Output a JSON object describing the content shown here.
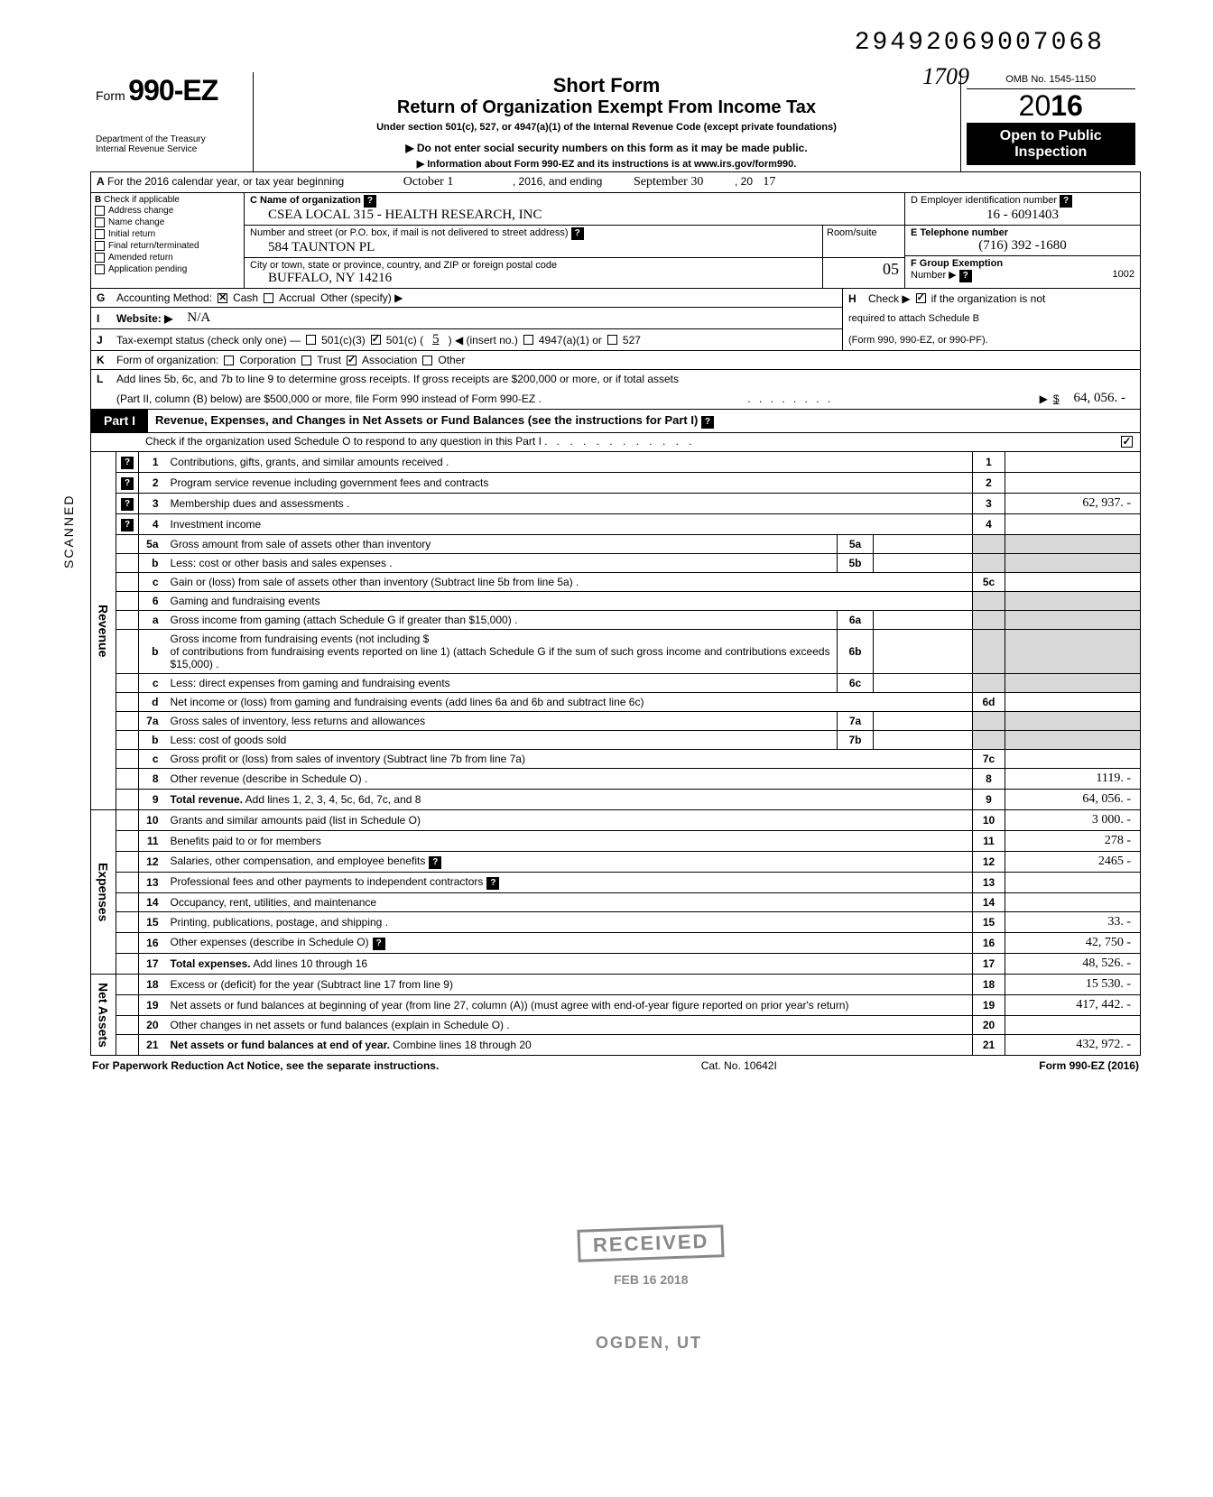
{
  "top_code": "29492069007068",
  "hand_top": "1709",
  "header": {
    "form_word": "Form",
    "form_no": "990-EZ",
    "dept1": "Department of the Treasury",
    "dept2": "Internal Revenue Service",
    "short_form": "Short Form",
    "return_org": "Return of Organization Exempt From Income Tax",
    "under": "Under section 501(c), 527, or 4947(a)(1) of the Internal Revenue Code (except private foundations)",
    "arrow1": "▶ Do not enter social security numbers on this form as it may be made public.",
    "arrow2": "▶ Information about Form 990-EZ and its instructions is at www.irs.gov/form990.",
    "omb": "OMB No. 1545-1150",
    "year_prefix": "20",
    "year_bold": "16",
    "open1": "Open to Public",
    "open2": "Inspection"
  },
  "row_a": {
    "label_a": "A",
    "text1": "For the 2016 calendar year, or tax year beginning",
    "begin": "October 1",
    "mid": ", 2016, and ending",
    "end": "September 30",
    "yr_pref": ", 20",
    "yr_val": "17"
  },
  "col_b": {
    "title": "B",
    "title2": "Check if applicable",
    "items": [
      "Address change",
      "Name change",
      "Initial return",
      "Final return/terminated",
      "Amended return",
      "Application pending"
    ]
  },
  "col_c": {
    "c_label": "C  Name of organization",
    "c_val": "CSEA LOCAL 315 - HEALTH RESEARCH, INC",
    "c2_label": "Number and street (or P.O. box, if mail is not delivered to street address)",
    "c2_val": "584 TAUNTON PL",
    "room_label": "Room/suite",
    "c3_label": "City or town, state or province, country, and ZIP or foreign postal code",
    "c3_val": "BUFFALO,  NY 14216",
    "room_hand": "05"
  },
  "col_def": {
    "d_label": "D Employer identification number",
    "d_val": "16 - 6091403",
    "e_label": "E Telephone number",
    "e_val": "(716) 392 -1680",
    "f_label": "F Group Exemption",
    "f_label2": "Number ▶",
    "f_val": "1002"
  },
  "line_g": {
    "lbl": "G",
    "text": "Accounting Method:",
    "cash": "Cash",
    "accrual": "Accrual",
    "other": "Other (specify) ▶"
  },
  "line_h": {
    "lbl": "H",
    "text1": "Check ▶",
    "text2": "if the organization is not",
    "text3": "required to attach Schedule B",
    "text4": "(Form 990, 990-EZ, or 990-PF)."
  },
  "line_i": {
    "lbl": "I",
    "text": "Website: ▶",
    "val": "N/A"
  },
  "line_j": {
    "lbl": "J",
    "text": "Tax-exempt status (check only one) —",
    "c3": "501(c)(3)",
    "c": "501(c) (",
    "cn": "5",
    "cins": ") ◀ (insert no.)",
    "a1": "4947(a)(1) or",
    "s527": "527"
  },
  "line_k": {
    "lbl": "K",
    "text": "Form of organization:",
    "corp": "Corporation",
    "trust": "Trust",
    "assoc": "Association",
    "other": "Other"
  },
  "line_l": {
    "lbl": "L",
    "text1": "Add lines 5b, 6c, and 7b to line 9 to determine gross receipts. If gross receipts are $200,000 or more, or if total assets",
    "text2": "(Part II, column (B) below) are $500,000 or more, file Form 990 instead of Form 990-EZ .",
    "dots": ". . . . . . . .",
    "arrow": "▶",
    "dollar": "$",
    "val": "64, 056. -"
  },
  "part1": {
    "tab": "Part I",
    "title": "Revenue, Expenses, and Changes in Net Assets or Fund Balances (see the instructions for Part I)",
    "sub": "Check if the organization used Schedule O to respond to any question in this Part I ."
  },
  "sides": {
    "rev": "Revenue",
    "exp": "Expenses",
    "na": "Net Assets"
  },
  "rows": [
    {
      "n": "1",
      "desc": "Contributions, gifts, grants, and similar amounts received .",
      "r": "1",
      "v": "",
      "qm": true
    },
    {
      "n": "2",
      "desc": "Program service revenue including government fees and contracts",
      "r": "2",
      "v": "",
      "qm": true
    },
    {
      "n": "3",
      "desc": "Membership dues and assessments .",
      "r": "3",
      "v": "62, 937. -",
      "qm": true
    },
    {
      "n": "4",
      "desc": "Investment income",
      "r": "4",
      "v": "",
      "qm": true
    },
    {
      "n": "5a",
      "desc": "Gross amount from sale of assets other than inventory",
      "mid": "5a",
      "midv": ""
    },
    {
      "n": "b",
      "desc": "Less: cost or other basis and sales expenses .",
      "mid": "5b",
      "midv": ""
    },
    {
      "n": "c",
      "desc": "Gain or (loss) from sale of assets other than inventory (Subtract line 5b from line 5a) .",
      "r": "5c",
      "v": ""
    },
    {
      "n": "6",
      "desc": "Gaming and fundraising events"
    },
    {
      "n": "a",
      "desc": "Gross income from gaming (attach Schedule G if greater than $15,000) .",
      "mid": "6a",
      "midv": ""
    },
    {
      "n": "b",
      "desc": "Gross income from fundraising events (not including  $",
      "desc2": "of contributions from fundraising events reported on line 1) (attach Schedule G if the sum of such gross income and contributions exceeds $15,000) .",
      "mid": "6b",
      "midv": ""
    },
    {
      "n": "c",
      "desc": "Less: direct expenses from gaming and fundraising events",
      "mid": "6c",
      "midv": ""
    },
    {
      "n": "d",
      "desc": "Net income or (loss) from gaming and fundraising events (add lines 6a and 6b and subtract line 6c)",
      "r": "6d",
      "v": ""
    },
    {
      "n": "7a",
      "desc": "Gross sales of inventory, less returns and allowances",
      "mid": "7a",
      "midv": ""
    },
    {
      "n": "b",
      "desc": "Less: cost of goods sold",
      "mid": "7b",
      "midv": ""
    },
    {
      "n": "c",
      "desc": "Gross profit or (loss) from sales of inventory (Subtract line 7b from line 7a)",
      "r": "7c",
      "v": ""
    },
    {
      "n": "8",
      "desc": "Other revenue (describe in Schedule O) .",
      "r": "8",
      "v": "1119. -"
    },
    {
      "n": "9",
      "desc": "Total revenue. Add lines 1, 2, 3, 4, 5c, 6d, 7c, and 8",
      "r": "9",
      "v": "64, 056. -",
      "bold": true
    },
    {
      "n": "10",
      "desc": "Grants and similar amounts paid (list in Schedule O)",
      "r": "10",
      "v": "3 000. -"
    },
    {
      "n": "11",
      "desc": "Benefits paid to or for members",
      "r": "11",
      "v": "278 -"
    },
    {
      "n": "12",
      "desc": "Salaries, other compensation, and employee benefits",
      "r": "12",
      "v": "2465 -",
      "qicon": true
    },
    {
      "n": "13",
      "desc": "Professional fees and other payments to independent contractors",
      "r": "13",
      "v": "",
      "qicon": true
    },
    {
      "n": "14",
      "desc": "Occupancy, rent, utilities, and maintenance",
      "r": "14",
      "v": ""
    },
    {
      "n": "15",
      "desc": "Printing, publications, postage, and shipping .",
      "r": "15",
      "v": "33. -"
    },
    {
      "n": "16",
      "desc": "Other expenses (describe in Schedule O)",
      "r": "16",
      "v": "42, 750 -",
      "qicon": true
    },
    {
      "n": "17",
      "desc": "Total expenses. Add lines 10 through 16",
      "r": "17",
      "v": "48, 526. -",
      "bold": true
    },
    {
      "n": "18",
      "desc": "Excess or (deficit) for the year (Subtract line 17 from line 9)",
      "r": "18",
      "v": "15 530. -"
    },
    {
      "n": "19",
      "desc": "Net assets or fund balances at beginning of year (from line 27, column (A)) (must agree with end-of-year figure reported on prior year's return)",
      "r": "19",
      "v": "417, 442. -"
    },
    {
      "n": "20",
      "desc": "Other changes in net assets or fund balances (explain in Schedule O) .",
      "r": "20",
      "v": ""
    },
    {
      "n": "21",
      "desc": "Net assets or fund balances at end of year. Combine lines 18 through 20",
      "r": "21",
      "v": "432, 972. -",
      "bold": true
    }
  ],
  "stamps": {
    "received": "RECEIVED",
    "date": "FEB 16 2018",
    "ogden": "OGDEN, UT"
  },
  "footer": {
    "left": "For Paperwork Reduction Act Notice, see the separate instructions.",
    "mid": "Cat. No. 10642I",
    "right": "Form 990-EZ (2016)"
  },
  "scanned": "SCANNED"
}
